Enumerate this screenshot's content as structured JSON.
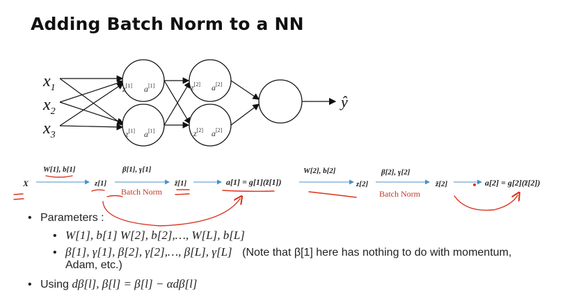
{
  "slide": {
    "title": "Adding Batch Norm to a NN"
  },
  "network": {
    "inputs": [
      "x",
      "x",
      "x"
    ],
    "input_subscripts": [
      "1",
      "2",
      "3"
    ],
    "layer1_nodes": [
      {
        "z": "z",
        "z_sup": "[1]",
        "z_sub": "1",
        "a": "a",
        "a_sup": "[1]",
        "a_sub": "1"
      },
      {
        "z": "z",
        "z_sup": "[1]",
        "z_sub": "2",
        "a": "a",
        "a_sup": "[1]",
        "a_sub": "2"
      }
    ],
    "layer2_nodes": [
      {
        "z": "z",
        "z_sup": "[2]",
        "z_sub": "1",
        "a": "a",
        "a_sup": "[2]",
        "a_sub": "1"
      },
      {
        "z": "z",
        "z_sup": "[2]",
        "z_sub": "2",
        "a": "a",
        "a_sup": "[2]",
        "a_sub": "2"
      }
    ],
    "output_label": "ŷ"
  },
  "pipeline": {
    "x_label": "X",
    "w1b1_label": "W[1], b[1]",
    "z1_label": "z[1]",
    "beta1_gamma1_label": "β[1], γ[1]",
    "batch_norm_1": "Batch Norm",
    "ztilde1_label": "z̃[1]",
    "a1_eq": "a[1] = g[1](z̃[1])",
    "w2b2_label": "W[2], b[2]",
    "z2_label": "z[2]",
    "beta2_gamma2_label": "β[2], γ[2]",
    "batch_norm_2": "Batch Norm",
    "ztilde2_label": "z̃[2]",
    "a2_eq": "a[2] = g[2](z̃[2])"
  },
  "bullets": {
    "parameters_label": "Parameters :",
    "weights_line": "W[1], b[1] W[2], b[2],…, W[L], b[L]",
    "beta_gamma_line": "β[1], γ[1], β[2], γ[2],…, β[L], γ[L]",
    "note_line1": "(Note that β[1] here has nothing to do with momentum,",
    "note_line2": "Adam, etc.)",
    "using_label": "Using",
    "update_rule": "dβ[l], β[l] = β[l] − αdβ[l]"
  },
  "colors": {
    "annotation_red": "#d9331f",
    "arrow_blue": "#4a90c8",
    "batch_norm_text": "#c0392b",
    "ink": "#111111"
  }
}
